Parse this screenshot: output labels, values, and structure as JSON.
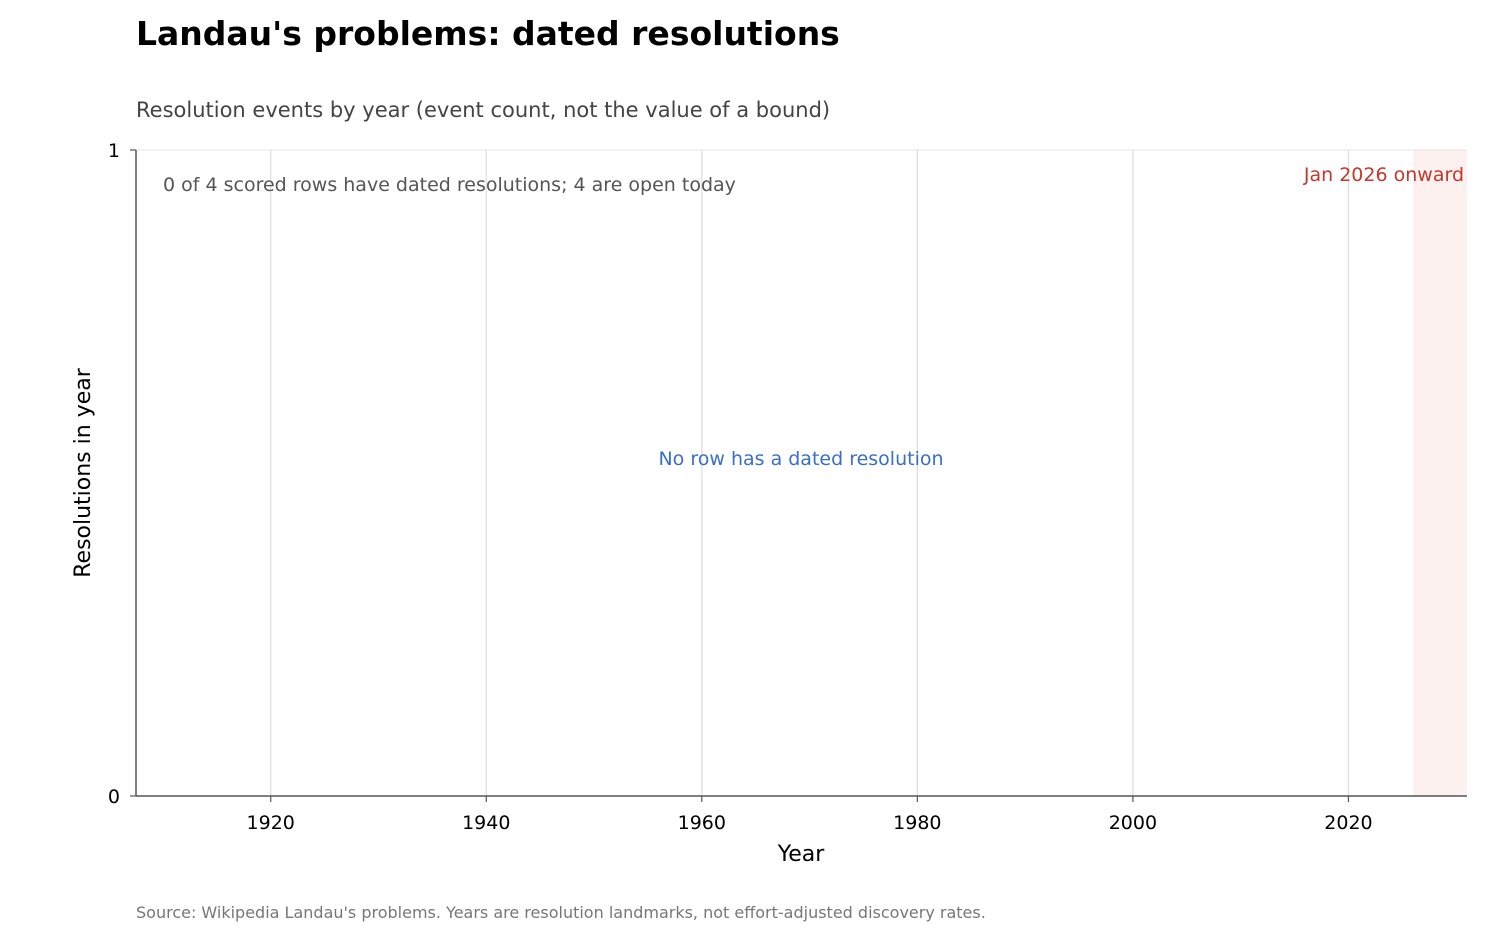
{
  "title": "Landau's problems: dated resolutions",
  "subtitle": "Resolution events by year (event count, not the value of a bound)",
  "source": "Source: Wikipedia Landau's problems. Years are resolution landmarks, not effort-adjusted discovery rates.",
  "colors": {
    "empty_note": "#3a6fc4",
    "future_label": "#c0392b",
    "future_band": "#fcf1ef",
    "grid": "#dddddd",
    "axis": "#555555"
  },
  "chart_data": {
    "type": "bar",
    "title": "Landau's problems: dated resolutions",
    "xlabel": "Year",
    "ylabel": "Resolutions in year",
    "xlim": [
      1907.5,
      2031
    ],
    "ylim": [
      0,
      1
    ],
    "x_ticks": [
      1920,
      1940,
      1960,
      1980,
      2000,
      2020
    ],
    "y_ticks": [
      0,
      1
    ],
    "grid": "vertical",
    "series": [],
    "annotations": {
      "status": "0 of 4 scored rows have dated resolutions; 4 are open today",
      "empty_note": "No row has a dated resolution",
      "future_label": "Jan 2026 onward"
    },
    "future_band": [
      2026,
      2031
    ]
  }
}
